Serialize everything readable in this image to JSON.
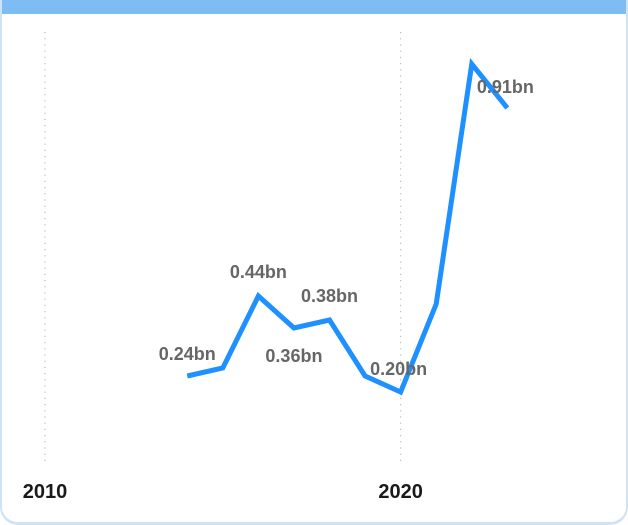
{
  "colors": {
    "accent_bar": "#7dbdf3",
    "line": "#1e90ff",
    "gridline": "#bbbbbb",
    "tick_text": "#1a1a1a",
    "data_label_text": "#666666"
  },
  "chart_data": {
    "type": "line",
    "title": "",
    "xlabel": "",
    "ylabel": "",
    "x_ticks": [
      2010,
      2020
    ],
    "xlim": [
      2010,
      2023.3
    ],
    "ylim": [
      0,
      1.1
    ],
    "grid": "vertical-dotted",
    "series": [
      {
        "x": [
          2014,
          2015,
          2016,
          2017,
          2018,
          2019,
          2020,
          2021,
          2022,
          2023
        ],
        "values": [
          0.24,
          0.26,
          0.44,
          0.36,
          0.38,
          0.24,
          0.2,
          0.42,
          1.02,
          0.91
        ],
        "labels": [
          "0.24bn",
          "",
          "0.44bn",
          "0.36bn",
          "0.38bn",
          "",
          "0.20bn",
          "",
          "",
          "0.91bn"
        ]
      }
    ]
  }
}
